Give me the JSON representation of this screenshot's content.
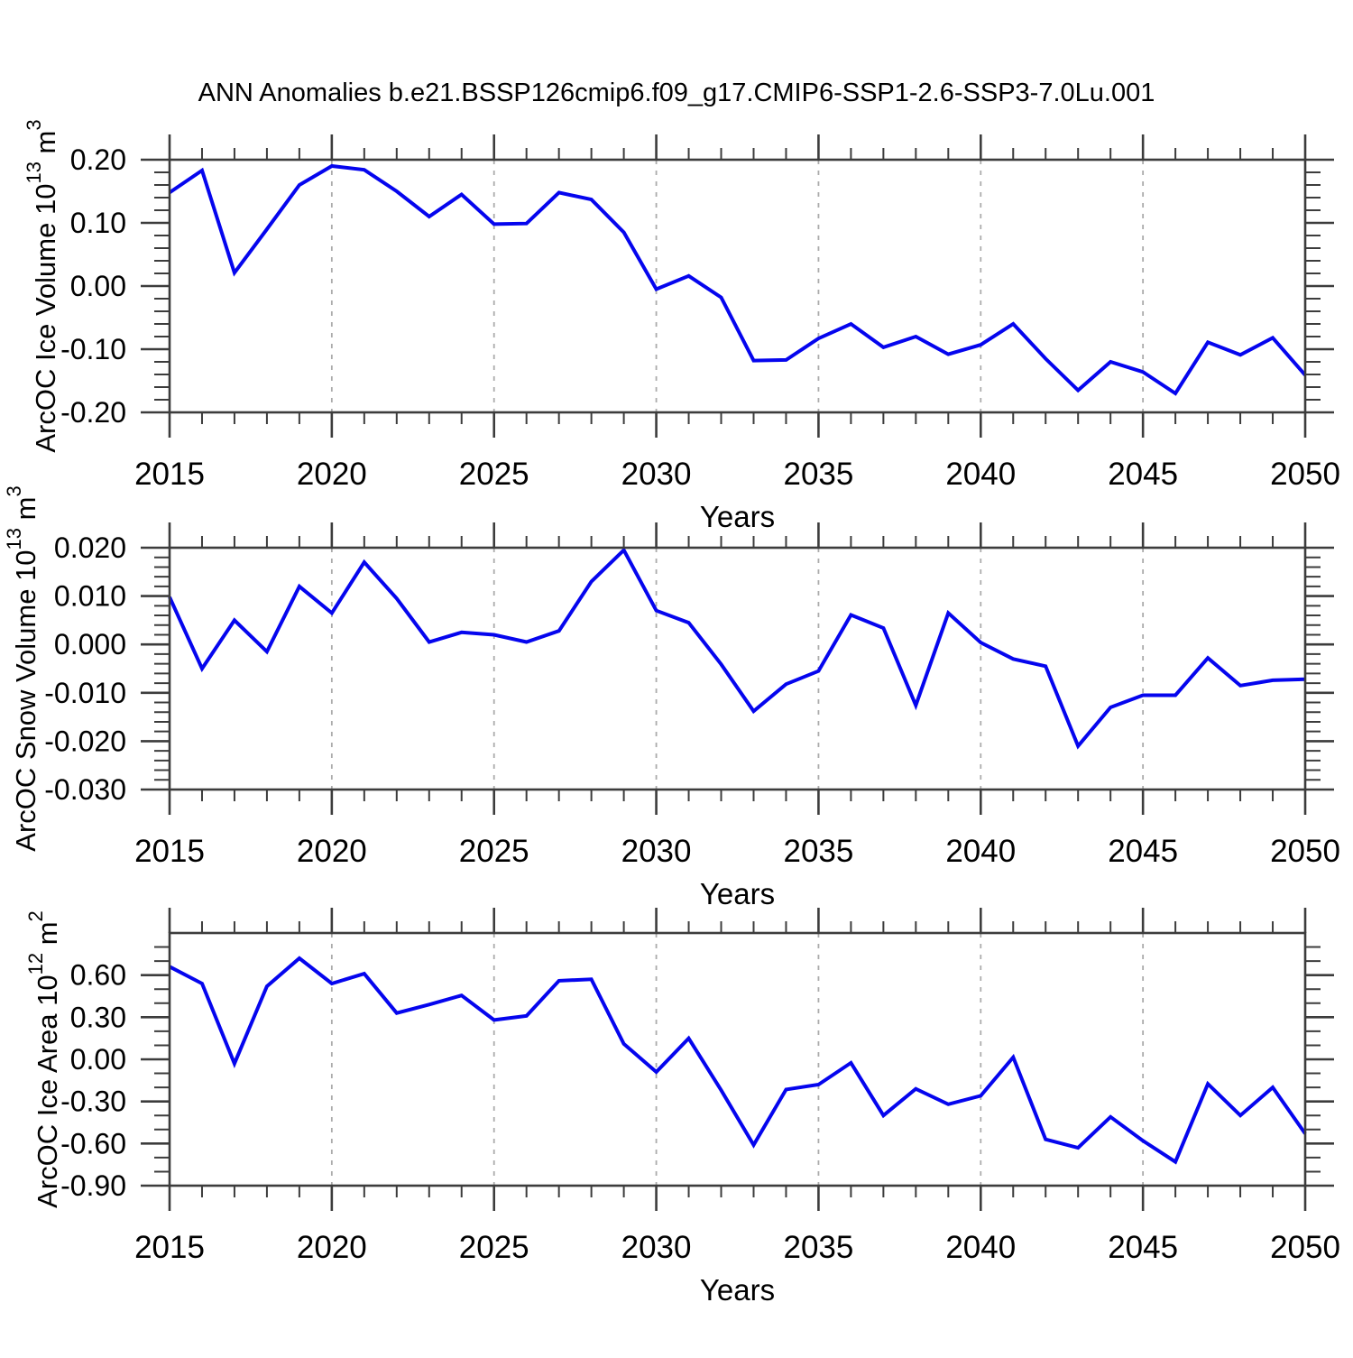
{
  "title": "ANN Anomalies b.e21.BSSP126cmip6.f09_g17.CMIP6-SSP1-2.6-SSP3-7.0Lu.001",
  "colors": {
    "line": "#0505EE",
    "axis": "#3c3c3c",
    "grid": "#ababab",
    "text": "#000000",
    "background": "#ffffff"
  },
  "chart_data": [
    {
      "type": "line",
      "name": "ice-volume",
      "ylabel": "ArcOC Ice Volume 10^13 m^3",
      "ylabel_parts": [
        {
          "text": "ArcOC Ice Volume 10"
        },
        {
          "text": "13",
          "sup": true
        },
        {
          "text": " m"
        },
        {
          "text": "3",
          "sup": true
        }
      ],
      "xlabel": "Years",
      "x_tick_labels": [
        "2015",
        "2020",
        "2025",
        "2030",
        "2035",
        "2040",
        "2045",
        "2050"
      ],
      "x_gridline_years": [
        2020,
        2025,
        2030,
        2035,
        2040,
        2045
      ],
      "xlim": [
        2015,
        2050
      ],
      "ylim": [
        -0.2,
        0.2
      ],
      "ytick_values": [
        0.2,
        0.1,
        0.0,
        -0.1,
        -0.2
      ],
      "ytick_labels": [
        "0.20",
        "0.10",
        "0.00",
        "-0.10",
        "-0.20"
      ],
      "y_minor_step": 0.02,
      "x": [
        2015,
        2016,
        2017,
        2018,
        2019,
        2020,
        2021,
        2022,
        2023,
        2024,
        2025,
        2026,
        2027,
        2028,
        2029,
        2030,
        2031,
        2032,
        2033,
        2034,
        2035,
        2036,
        2037,
        2038,
        2039,
        2040,
        2041,
        2042,
        2043,
        2044,
        2045,
        2046,
        2047,
        2048,
        2049,
        2050
      ],
      "values": [
        0.148,
        0.183,
        0.021,
        0.09,
        0.16,
        0.19,
        0.184,
        0.15,
        0.11,
        0.145,
        0.098,
        0.099,
        0.148,
        0.137,
        0.085,
        -0.005,
        0.016,
        -0.018,
        -0.118,
        -0.117,
        -0.083,
        -0.06,
        -0.097,
        -0.08,
        -0.108,
        -0.093,
        -0.06,
        -0.115,
        -0.165,
        -0.12,
        -0.136,
        -0.17,
        -0.089,
        -0.109,
        -0.082,
        -0.141
      ]
    },
    {
      "type": "line",
      "name": "snow-volume",
      "ylabel": "ArcOC Snow Volume 10^13 m^3",
      "ylabel_parts": [
        {
          "text": "ArcOC Snow Volume 10"
        },
        {
          "text": "13",
          "sup": true
        },
        {
          "text": " m"
        },
        {
          "text": "3",
          "sup": true
        }
      ],
      "xlabel": "Years",
      "x_tick_labels": [
        "2015",
        "2020",
        "2025",
        "2030",
        "2035",
        "2040",
        "2045",
        "2050"
      ],
      "x_gridline_years": [
        2020,
        2025,
        2030,
        2035,
        2040,
        2045
      ],
      "xlim": [
        2015,
        2050
      ],
      "ylim": [
        -0.03,
        0.02
      ],
      "ytick_values": [
        0.02,
        0.01,
        0.0,
        -0.01,
        -0.02,
        -0.03
      ],
      "ytick_labels": [
        "0.020",
        "0.010",
        "0.000",
        "-0.010",
        "-0.020",
        "-0.030"
      ],
      "y_minor_step": 0.002,
      "x": [
        2015,
        2016,
        2017,
        2018,
        2019,
        2020,
        2021,
        2022,
        2023,
        2024,
        2025,
        2026,
        2027,
        2028,
        2029,
        2030,
        2031,
        2032,
        2033,
        2034,
        2035,
        2036,
        2037,
        2038,
        2039,
        2040,
        2041,
        2042,
        2043,
        2044,
        2045,
        2046,
        2047,
        2048,
        2049,
        2050
      ],
      "values": [
        0.0098,
        -0.005,
        0.005,
        -0.0015,
        0.012,
        0.0065,
        0.017,
        0.0095,
        0.0005,
        0.0025,
        0.002,
        0.0005,
        0.0028,
        0.013,
        0.0195,
        0.007,
        0.0045,
        -0.0041,
        -0.0138,
        -0.0082,
        -0.0055,
        0.0061,
        0.0034,
        -0.0126,
        0.0065,
        0.0004,
        -0.003,
        -0.0045,
        -0.021,
        -0.013,
        -0.0105,
        -0.0105,
        -0.0028,
        -0.0085,
        -0.0074,
        -0.0072
      ]
    },
    {
      "type": "line",
      "name": "ice-area",
      "ylabel": "ArcOC Ice Area 10^12 m^2",
      "ylabel_parts": [
        {
          "text": "ArcOC Ice Area 10"
        },
        {
          "text": "12",
          "sup": true
        },
        {
          "text": " m"
        },
        {
          "text": "2",
          "sup": true
        }
      ],
      "xlabel": "Years",
      "x_tick_labels": [
        "2015",
        "2020",
        "2025",
        "2030",
        "2035",
        "2040",
        "2045",
        "2050"
      ],
      "x_gridline_years": [
        2020,
        2025,
        2030,
        2035,
        2040,
        2045
      ],
      "xlim": [
        2015,
        2050
      ],
      "ylim": [
        -0.9,
        0.9
      ],
      "ytick_values": [
        0.6,
        0.3,
        0.0,
        -0.3,
        -0.6,
        -0.9
      ],
      "ytick_labels": [
        "0.60",
        "0.30",
        "0.00",
        "-0.30",
        "-0.60",
        "-0.90"
      ],
      "y_minor_step": 0.1,
      "x": [
        2015,
        2016,
        2017,
        2018,
        2019,
        2020,
        2021,
        2022,
        2023,
        2024,
        2025,
        2026,
        2027,
        2028,
        2029,
        2030,
        2031,
        2032,
        2033,
        2034,
        2035,
        2036,
        2037,
        2038,
        2039,
        2040,
        2041,
        2042,
        2043,
        2044,
        2045,
        2046,
        2047,
        2048,
        2049,
        2050
      ],
      "values": [
        0.66,
        0.54,
        -0.03,
        0.52,
        0.72,
        0.54,
        0.61,
        0.33,
        0.39,
        0.455,
        0.28,
        0.31,
        0.56,
        0.57,
        0.11,
        -0.09,
        0.15,
        -0.22,
        -0.61,
        -0.215,
        -0.18,
        -0.025,
        -0.4,
        -0.21,
        -0.32,
        -0.26,
        0.015,
        -0.57,
        -0.63,
        -0.41,
        -0.58,
        -0.73,
        -0.175,
        -0.4,
        -0.2,
        -0.53
      ]
    }
  ]
}
